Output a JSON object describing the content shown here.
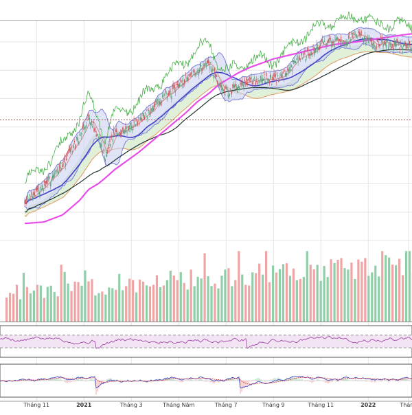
{
  "chart_data": {
    "type": "line",
    "title": "",
    "xlabel": "",
    "ylabel": "",
    "grid": true,
    "x_tick_labels": [
      "Tháng 11",
      "2021",
      "Tháng 3",
      "Tháng Năm",
      "Tháng 7",
      "Tháng 9",
      "Tháng 11",
      "2022",
      "Tháng"
    ],
    "x_tick_bold": [
      false,
      true,
      false,
      false,
      false,
      false,
      false,
      true,
      false
    ],
    "x_tick_positions": [
      0.5,
      2.5,
      4.5,
      6.5,
      8.5,
      10.5,
      12.5,
      14.5,
      16.2
    ],
    "price": {
      "index": [
        0,
        0.8,
        1.6,
        2.3,
        2.7,
        3.1,
        3.4,
        3.8,
        4.3,
        4.8,
        5.3,
        5.8,
        6.3,
        6.8,
        7.3,
        7.8,
        8.2,
        8.6,
        9.0,
        9.5,
        10.0,
        10.5,
        11.0,
        11.5,
        12.0,
        12.5,
        13.0,
        13.5,
        14.0,
        14.4,
        14.8,
        15.2,
        15.6,
        16.0,
        16.5
      ],
      "close": [
        8,
        18,
        34,
        52,
        68,
        52,
        40,
        55,
        58,
        64,
        72,
        80,
        86,
        94,
        101,
        105,
        90,
        84,
        90,
        92,
        94,
        93,
        97,
        108,
        112,
        118,
        121,
        120,
        126,
        122,
        118,
        120,
        118,
        117,
        119
      ],
      "ma200": [
        -8,
        -7,
        -2,
        8,
        16,
        20,
        24,
        30,
        36,
        42,
        49,
        56,
        63,
        70,
        78,
        84,
        90,
        94,
        98,
        102,
        105,
        108,
        110,
        112,
        114,
        116,
        118,
        119,
        120,
        121,
        122,
        123,
        124,
        125,
        126
      ],
      "ylim": [
        -20,
        135
      ],
      "reference_level": 65
    },
    "volume": {
      "count": 120,
      "ylim": [
        0,
        100
      ]
    },
    "rsi": {
      "upper_band": 70,
      "lower_band": 30,
      "ylim": [
        0,
        100
      ]
    },
    "macd": {
      "ylim": [
        -5,
        5
      ]
    },
    "colors": {
      "up": "#5aa37a",
      "down": "#d05a5a",
      "volume_up": "#8fcfa8",
      "volume_down": "#f0a5a5",
      "ma200": "#e84ce8",
      "ma_blue": "#4040c8",
      "ma_dark": "#203030",
      "bollinger_fill": "#c9cdf0",
      "bollinger_line": "#7b7fd6",
      "cloud_fill": "#d8ecd0",
      "cloud_edge": "#e09860",
      "lagging": "#48b048",
      "rsi_line": "#a048a8",
      "rsi_fill": "#f3e4f4",
      "macd_line": "#4048c0",
      "signal_line": "#d04040",
      "grid": "#e4e4e4",
      "reference": "#a05050"
    }
  }
}
